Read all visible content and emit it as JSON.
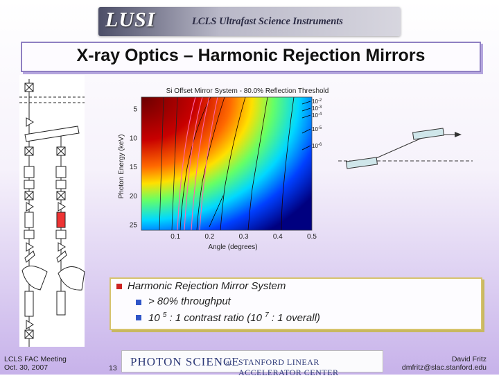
{
  "banner": {
    "logo": "LUSI",
    "subtitle": "LCLS Ultrafast Science Instruments"
  },
  "slide": {
    "title": "X-ray Optics – Harmonic Rejection Mirrors"
  },
  "chart_data": {
    "type": "heatmap",
    "title": "Si Offset Mirror System - 80.0% Reflection Threshold",
    "xlabel": "Angle (degrees)",
    "ylabel": "Photon Energy (keV)",
    "xlim": [
      0.0,
      0.5
    ],
    "ylim": [
      3,
      26
    ],
    "y_inverted": true,
    "x_ticks": [
      "0.1",
      "0.2",
      "0.3",
      "0.4",
      "0.5"
    ],
    "y_ticks": [
      "5",
      "10",
      "15",
      "20",
      "25"
    ],
    "contour_labels": [
      {
        "base": "10",
        "exp": "-2"
      },
      {
        "base": "10",
        "exp": "-3"
      },
      {
        "base": "10",
        "exp": "-4"
      },
      {
        "base": "10",
        "exp": "-5"
      },
      {
        "base": "10",
        "exp": "-6"
      }
    ],
    "colormap": [
      "#7f0000",
      "#d40000",
      "#ff6a00",
      "#ffd400",
      "#7fff7f",
      "#00d4ff",
      "#0050ff",
      "#00007f"
    ]
  },
  "bullets": {
    "main": "Harmonic Rejection Mirror System",
    "sub1": "> 80% throughput",
    "sub2_pre": "10 ",
    "sub2_exp": "5",
    "sub2_mid": " : 1 contrast ratio (10 ",
    "sub2_exp2": "7",
    "sub2_post": " : 1 overall)"
  },
  "footer": {
    "left_line1": "LCLS FAC Meeting",
    "left_line2": "Oct. 30, 2007",
    "page": "13",
    "band_photon": "PHOTON SCIENCE",
    "band_at": "at",
    "band_slac": "STANFORD LINEAR ACCELERATOR CENTER",
    "right_line1": "David Fritz",
    "right_line2": "dmfritz@slac.stanford.edu"
  },
  "colors": {
    "accent": "#8f7fc2",
    "bullet_main": "#cc2222",
    "bullet_sub": "#2f55c8"
  }
}
